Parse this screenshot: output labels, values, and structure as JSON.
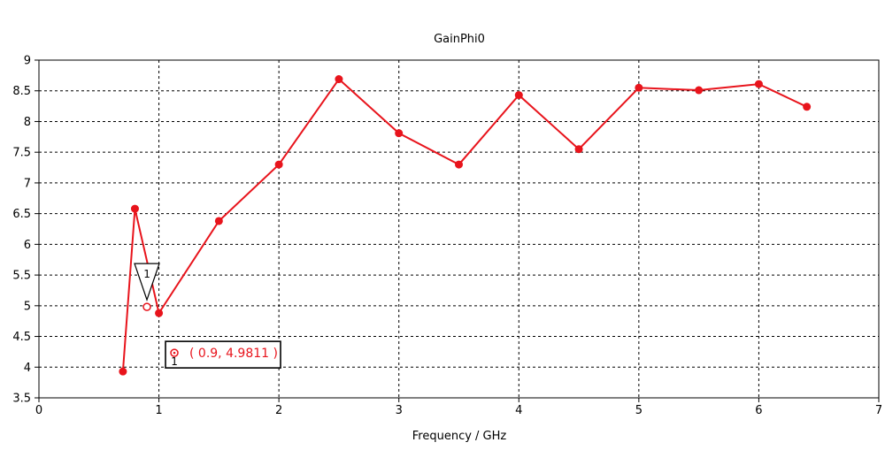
{
  "chart_data": {
    "type": "line",
    "title": "GainPhi0",
    "xlabel": "Frequency / GHz",
    "ylabel": "",
    "xlim": [
      0,
      7
    ],
    "ylim": [
      3.5,
      9
    ],
    "grid": true,
    "x_ticks": [
      "0",
      "1",
      "2",
      "3",
      "4",
      "5",
      "6",
      "7"
    ],
    "y_ticks": [
      "3.5",
      "4",
      "4.5",
      "5",
      "5.5",
      "6",
      "6.5",
      "7",
      "7.5",
      "8",
      "8.5",
      "9"
    ],
    "series": [
      {
        "color": "#e8141c",
        "x": [
          0.7,
          0.8,
          1.0,
          1.5,
          2.0,
          2.5,
          3.0,
          3.5,
          4.0,
          4.5,
          5.0,
          5.5,
          6.0,
          6.4
        ],
        "y": [
          3.93,
          6.58,
          4.88,
          6.38,
          7.3,
          8.69,
          7.81,
          7.3,
          8.43,
          7.55,
          8.55,
          8.51,
          8.61,
          8.24
        ]
      }
    ],
    "marker": {
      "id": "1",
      "x": 0.9,
      "y": 4.9811,
      "label": "( 0.9, 4.9811 )"
    }
  }
}
